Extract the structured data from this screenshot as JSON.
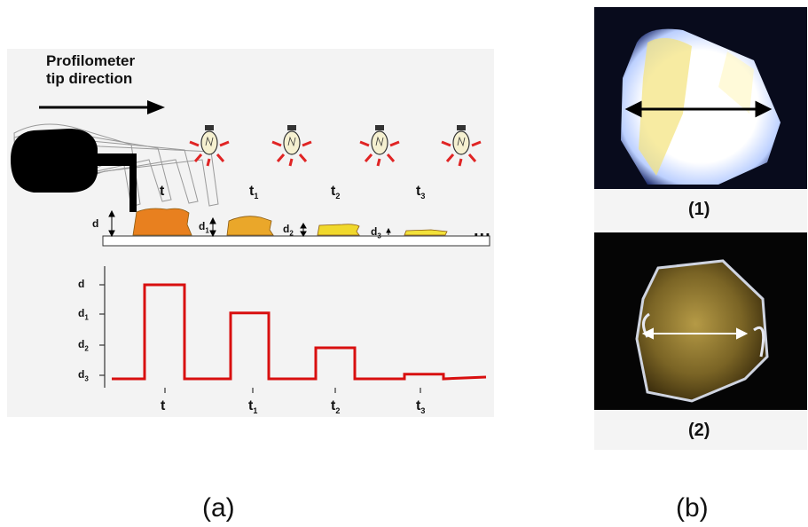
{
  "panel_a": {
    "direction_label_line1": "Profilometer",
    "direction_label_line2": "tip direction",
    "time_labels": [
      "t",
      "t",
      "t",
      "t"
    ],
    "time_subs": [
      "",
      "1",
      "2",
      "3"
    ],
    "thickness_labels": [
      "d",
      "d",
      "d",
      "d"
    ],
    "thickness_subs": [
      "",
      "1",
      "2",
      "3"
    ],
    "ellipsis": "...",
    "profile": {
      "y_labels": [
        "d",
        "d",
        "d",
        "d"
      ],
      "y_subs": [
        "",
        "1",
        "2",
        "3"
      ],
      "x_labels": [
        "t",
        "t",
        "t",
        "t"
      ],
      "x_subs": [
        "",
        "1",
        "2",
        "3"
      ],
      "levels": [
        1.0,
        0.7,
        0.33,
        0.05
      ]
    },
    "colors": {
      "sample_colors": [
        "#e8801f",
        "#eaa72a",
        "#f0d82c",
        "#f2e13a"
      ],
      "trace": "#d80f0f",
      "ray": "#e02424"
    }
  },
  "panel_b": {
    "caption_1": "(1)",
    "caption_2": "(2)"
  },
  "captions": {
    "a": "(a)",
    "b": "(b)"
  }
}
